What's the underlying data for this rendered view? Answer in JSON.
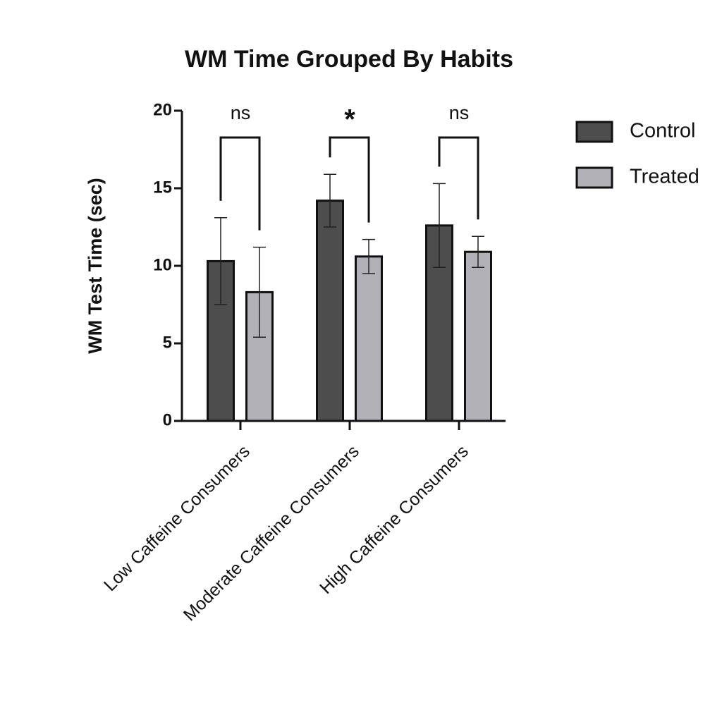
{
  "chart_data": {
    "type": "bar",
    "title": "WM Time Grouped By Habits",
    "y_label": "WM Test Time (sec)",
    "categories": [
      "Low Caffeine Consumers",
      "Moderate Caffeine Consumers",
      "High Caffeine Consumers"
    ],
    "series": [
      {
        "name": "Control",
        "color": "#4d4d4d",
        "values": [
          10.3,
          14.2,
          12.6
        ],
        "errors": [
          2.8,
          1.7,
          2.7
        ]
      },
      {
        "name": "Treated",
        "color": "#b1b1b7",
        "values": [
          8.3,
          10.6,
          10.9
        ],
        "errors": [
          2.9,
          1.1,
          1.0
        ]
      }
    ],
    "significance": [
      "ns",
      "*",
      "ns"
    ],
    "ylim": [
      0,
      20
    ],
    "yticks": [
      0,
      5,
      10,
      15,
      20
    ],
    "legend": "right"
  }
}
